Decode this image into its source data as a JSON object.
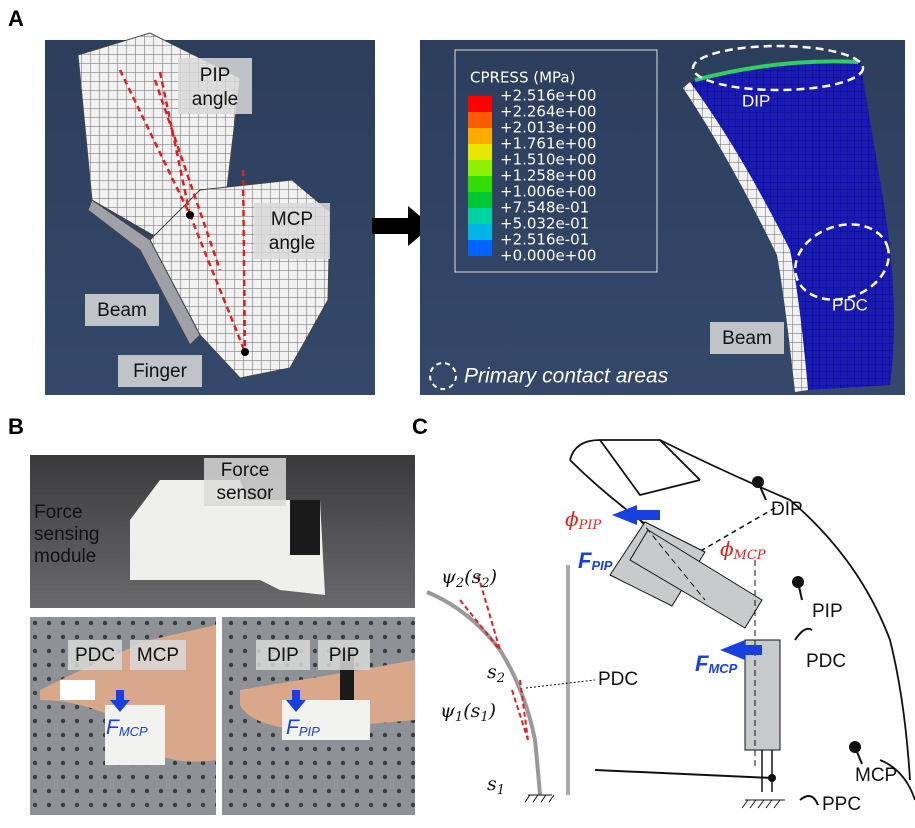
{
  "panels": {
    "a": "A",
    "b": "B",
    "c": "C"
  },
  "panel_a": {
    "pip_angle": [
      "PIP",
      "angle"
    ],
    "mcp_angle": [
      "MCP",
      "angle"
    ],
    "beam": "Beam",
    "finger": "Finger",
    "legend_title": "CPRESS (MPa)",
    "legend_values": [
      "+2.516e+00",
      "+2.264e+00",
      "+2.013e+00",
      "+1.761e+00",
      "+1.510e+00",
      "+1.258e+00",
      "+1.006e+00",
      "+7.548e-01",
      "+5.032e-01",
      "+2.516e-01",
      "+0.000e+00"
    ],
    "dip": "DIP",
    "pdc": "PDC",
    "beam_right": "Beam",
    "contact_note": "Primary contact areas"
  },
  "panel_b": {
    "force_sensor": [
      "Force",
      "sensor"
    ],
    "module": [
      "Force",
      "sensing",
      "module"
    ],
    "pdc": "PDC",
    "mcp": "MCP",
    "f_mcp": {
      "base": "F",
      "sub": "MCP"
    },
    "dip": "DIP",
    "pip": "PIP",
    "f_pip": {
      "base": "F",
      "sub": "PIP"
    }
  },
  "panel_c": {
    "dip": "DIP",
    "pip": "PIP",
    "pdc": "PDC",
    "mcp": "MCP",
    "ppc": "PPC",
    "pdc_beam": "PDC",
    "phi_pip": {
      "base": "ϕ",
      "sub": "PIP"
    },
    "phi_mcp": {
      "base": "ϕ",
      "sub": "MCP"
    },
    "f_pip": {
      "base": "F",
      "sub": "PIP"
    },
    "f_mcp": {
      "base": "F",
      "sub": "MCP"
    },
    "psi2": {
      "base": "ψ",
      "sub": "2",
      "open": "(s",
      "arg_sub": "2",
      "close": ")"
    },
    "psi1": {
      "base": "ψ",
      "sub": "1",
      "open": "(s",
      "arg_sub": "1",
      "close": ")"
    },
    "s2": {
      "base": "s",
      "sub": "2"
    },
    "s1": {
      "base": "s",
      "sub": "1"
    }
  }
}
